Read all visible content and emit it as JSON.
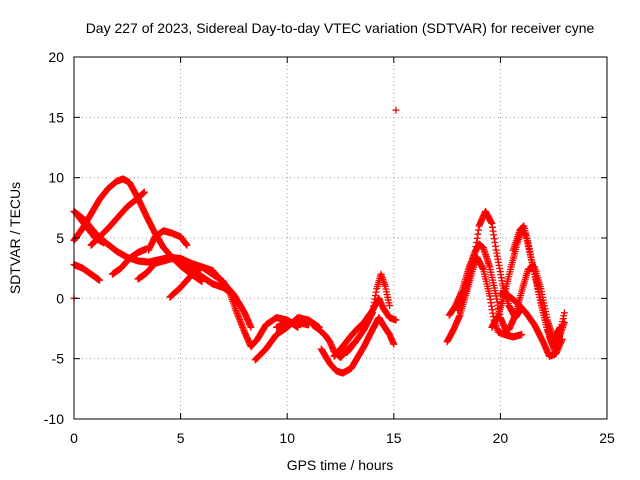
{
  "chart_data": {
    "type": "scatter",
    "title": "Day 227 of 2023, Sidereal Day-to-day VTEC variation (SDTVAR) for receiver cyne",
    "xlabel": "GPS time / hours",
    "ylabel": "SDTVAR / TECUs",
    "xlim": [
      0,
      25
    ],
    "ylim": [
      -10,
      20
    ],
    "xticks": [
      0,
      5,
      10,
      15,
      20,
      25
    ],
    "yticks": [
      -10,
      -5,
      0,
      5,
      10,
      15,
      20
    ],
    "grid": true,
    "marker": "+",
    "color": "#ff0000",
    "outliers": [
      [
        0.0,
        0.0
      ],
      [
        15.1,
        15.6
      ]
    ],
    "tracks": [
      [
        [
          0.0,
          7.2
        ],
        [
          0.5,
          6.5
        ],
        [
          1.0,
          5.4
        ],
        [
          1.5,
          4.6
        ],
        [
          2.0,
          3.9
        ],
        [
          2.5,
          3.4
        ],
        [
          3.0,
          3.1
        ],
        [
          3.5,
          3.0
        ],
        [
          4.0,
          3.2
        ],
        [
          4.5,
          3.4
        ],
        [
          5.0,
          3.3
        ],
        [
          5.5,
          2.9
        ],
        [
          6.0,
          2.6
        ],
        [
          6.5,
          2.0
        ],
        [
          7.0,
          1.4
        ],
        [
          7.3,
          0.5
        ],
        [
          7.6,
          -1.0
        ],
        [
          8.0,
          -2.8
        ],
        [
          8.3,
          -4.0
        ],
        [
          8.6,
          -3.4
        ],
        [
          9.0,
          -2.2
        ],
        [
          9.5,
          -1.6
        ],
        [
          10.0,
          -1.8
        ],
        [
          10.5,
          -2.4
        ]
      ],
      [
        [
          0.0,
          4.8
        ],
        [
          0.4,
          5.8
        ],
        [
          0.8,
          7.0
        ],
        [
          1.2,
          8.2
        ],
        [
          1.6,
          9.1
        ],
        [
          2.0,
          9.7
        ],
        [
          2.3,
          9.9
        ],
        [
          2.6,
          9.6
        ],
        [
          3.0,
          8.3
        ],
        [
          3.4,
          6.8
        ],
        [
          3.8,
          5.4
        ],
        [
          4.2,
          4.2
        ],
        [
          4.6,
          3.4
        ],
        [
          5.0,
          2.7
        ],
        [
          5.5,
          2.0
        ],
        [
          6.0,
          1.4
        ]
      ],
      [
        [
          0.0,
          2.8
        ],
        [
          0.4,
          2.5
        ],
        [
          0.8,
          2.0
        ],
        [
          1.2,
          1.5
        ]
      ],
      [
        [
          0.2,
          6.8
        ],
        [
          0.6,
          5.9
        ],
        [
          1.0,
          5.0
        ],
        [
          1.4,
          4.6
        ]
      ],
      [
        [
          0.8,
          4.4
        ],
        [
          1.2,
          5.1
        ],
        [
          1.6,
          5.8
        ],
        [
          2.0,
          6.6
        ],
        [
          2.5,
          7.6
        ],
        [
          3.0,
          8.3
        ],
        [
          3.3,
          8.8
        ]
      ],
      [
        [
          1.8,
          2.0
        ],
        [
          2.2,
          2.5
        ],
        [
          2.6,
          3.3
        ],
        [
          3.0,
          3.8
        ],
        [
          3.4,
          4.1
        ]
      ],
      [
        [
          3.0,
          1.6
        ],
        [
          3.4,
          2.1
        ],
        [
          3.8,
          2.9
        ],
        [
          4.2,
          3.1
        ],
        [
          4.6,
          3.3
        ],
        [
          5.0,
          3.0
        ],
        [
          5.5,
          2.4
        ],
        [
          6.0,
          1.8
        ],
        [
          6.5,
          1.2
        ],
        [
          7.0,
          0.9
        ],
        [
          7.4,
          0.4
        ],
        [
          7.8,
          -0.6
        ]
      ],
      [
        [
          3.5,
          4.0
        ],
        [
          3.8,
          5.1
        ],
        [
          4.2,
          5.6
        ],
        [
          4.6,
          5.4
        ],
        [
          5.0,
          5.1
        ],
        [
          5.3,
          4.4
        ]
      ],
      [
        [
          4.5,
          0.1
        ],
        [
          5.0,
          0.9
        ],
        [
          5.5,
          1.9
        ],
        [
          6.0,
          2.6
        ],
        [
          6.5,
          2.3
        ],
        [
          7.0,
          1.3
        ],
        [
          7.5,
          0.3
        ],
        [
          8.0,
          -1.2
        ],
        [
          8.3,
          -2.4
        ]
      ],
      [
        [
          8.5,
          -5.1
        ],
        [
          9.0,
          -4.2
        ],
        [
          9.5,
          -3.0
        ],
        [
          10.0,
          -2.4
        ],
        [
          10.5,
          -1.6
        ],
        [
          11.0,
          -1.8
        ],
        [
          11.5,
          -2.4
        ]
      ],
      [
        [
          9.5,
          -2.4
        ],
        [
          10.0,
          -2.0
        ],
        [
          10.5,
          -2.0
        ],
        [
          11.0,
          -2.2
        ]
      ],
      [
        [
          11.2,
          -2.2
        ],
        [
          11.5,
          -2.6
        ],
        [
          11.8,
          -3.1
        ],
        [
          12.0,
          -3.6
        ],
        [
          12.2,
          -4.4
        ],
        [
          12.5,
          -4.9
        ],
        [
          12.8,
          -4.3
        ],
        [
          13.2,
          -3.6
        ]
      ],
      [
        [
          11.6,
          -4.2
        ],
        [
          12.0,
          -5.4
        ],
        [
          12.3,
          -6.0
        ],
        [
          12.6,
          -6.2
        ],
        [
          13.0,
          -5.8
        ],
        [
          13.3,
          -4.9
        ],
        [
          13.6,
          -4.0
        ],
        [
          14.0,
          -2.6
        ],
        [
          14.3,
          -1.6
        ],
        [
          14.5,
          -2.2
        ],
        [
          14.8,
          -3.0
        ],
        [
          15.0,
          -3.8
        ]
      ],
      [
        [
          12.2,
          -4.8
        ],
        [
          12.6,
          -4.0
        ],
        [
          13.0,
          -3.1
        ],
        [
          13.3,
          -2.5
        ],
        [
          13.6,
          -2.0
        ],
        [
          14.0,
          -1.0
        ],
        [
          14.3,
          0.0
        ],
        [
          14.5,
          -0.8
        ],
        [
          14.8,
          -1.6
        ],
        [
          15.1,
          -1.8
        ]
      ],
      [
        [
          12.8,
          -4.5
        ],
        [
          13.2,
          -3.6
        ],
        [
          13.6,
          -2.6
        ],
        [
          14.0,
          -1.2
        ],
        [
          14.2,
          0.8
        ],
        [
          14.4,
          2.0
        ],
        [
          14.6,
          1.0
        ],
        [
          14.8,
          -0.6
        ]
      ],
      [
        [
          17.5,
          -3.6
        ],
        [
          17.8,
          -2.6
        ],
        [
          18.1,
          -1.4
        ],
        [
          18.4,
          0.4
        ],
        [
          18.7,
          2.4
        ],
        [
          18.9,
          3.4
        ],
        [
          19.2,
          2.4
        ],
        [
          19.5,
          0.2
        ],
        [
          19.7,
          -1.8
        ],
        [
          19.9,
          -2.8
        ],
        [
          20.2,
          -3.0
        ],
        [
          20.6,
          -3.2
        ],
        [
          21.0,
          -3.0
        ]
      ],
      [
        [
          17.6,
          -1.4
        ],
        [
          17.9,
          -0.6
        ],
        [
          18.2,
          0.6
        ],
        [
          18.5,
          2.4
        ],
        [
          18.8,
          3.8
        ],
        [
          19.0,
          4.5
        ],
        [
          19.2,
          4.2
        ],
        [
          19.5,
          2.6
        ],
        [
          19.8,
          0.2
        ],
        [
          20.0,
          -1.6
        ],
        [
          20.3,
          -2.8
        ]
      ],
      [
        [
          18.0,
          -1.0
        ],
        [
          18.4,
          0.8
        ],
        [
          18.8,
          3.6
        ],
        [
          19.0,
          6.0
        ],
        [
          19.3,
          7.2
        ],
        [
          19.6,
          6.2
        ],
        [
          19.8,
          4.0
        ],
        [
          20.1,
          1.2
        ],
        [
          20.4,
          -0.6
        ],
        [
          20.7,
          -1.6
        ],
        [
          21.0,
          -0.8
        ]
      ],
      [
        [
          19.6,
          -2.4
        ],
        [
          19.9,
          -1.4
        ],
        [
          20.2,
          0.4
        ],
        [
          20.5,
          2.6
        ],
        [
          20.8,
          4.6
        ],
        [
          21.0,
          5.6
        ],
        [
          21.2,
          5.2
        ],
        [
          21.4,
          3.6
        ],
        [
          21.7,
          1.4
        ],
        [
          22.0,
          -1.0
        ],
        [
          22.3,
          -3.2
        ],
        [
          22.6,
          -4.6
        ],
        [
          22.9,
          -3.4
        ]
      ],
      [
        [
          20.4,
          -2.6
        ],
        [
          20.7,
          -1.4
        ],
        [
          21.0,
          0.6
        ],
        [
          21.3,
          2.4
        ],
        [
          21.6,
          2.6
        ],
        [
          21.9,
          0.8
        ],
        [
          22.2,
          -1.8
        ],
        [
          22.5,
          -3.4
        ],
        [
          22.8,
          -2.4
        ]
      ],
      [
        [
          20.6,
          4.0
        ],
        [
          20.9,
          5.6
        ],
        [
          21.1,
          6.0
        ],
        [
          21.3,
          4.6
        ],
        [
          21.6,
          2.0
        ],
        [
          21.9,
          -0.4
        ],
        [
          22.2,
          -2.6
        ],
        [
          22.5,
          -4.0
        ],
        [
          22.8,
          -3.0
        ],
        [
          23.0,
          -2.0
        ]
      ],
      [
        [
          20.0,
          0.4
        ],
        [
          20.4,
          0.2
        ],
        [
          20.8,
          -0.4
        ],
        [
          21.2,
          -1.2
        ],
        [
          21.6,
          -2.2
        ],
        [
          22.0,
          -3.6
        ],
        [
          22.3,
          -4.8
        ],
        [
          22.6,
          -4.6
        ],
        [
          23.0,
          -1.2
        ]
      ]
    ]
  }
}
